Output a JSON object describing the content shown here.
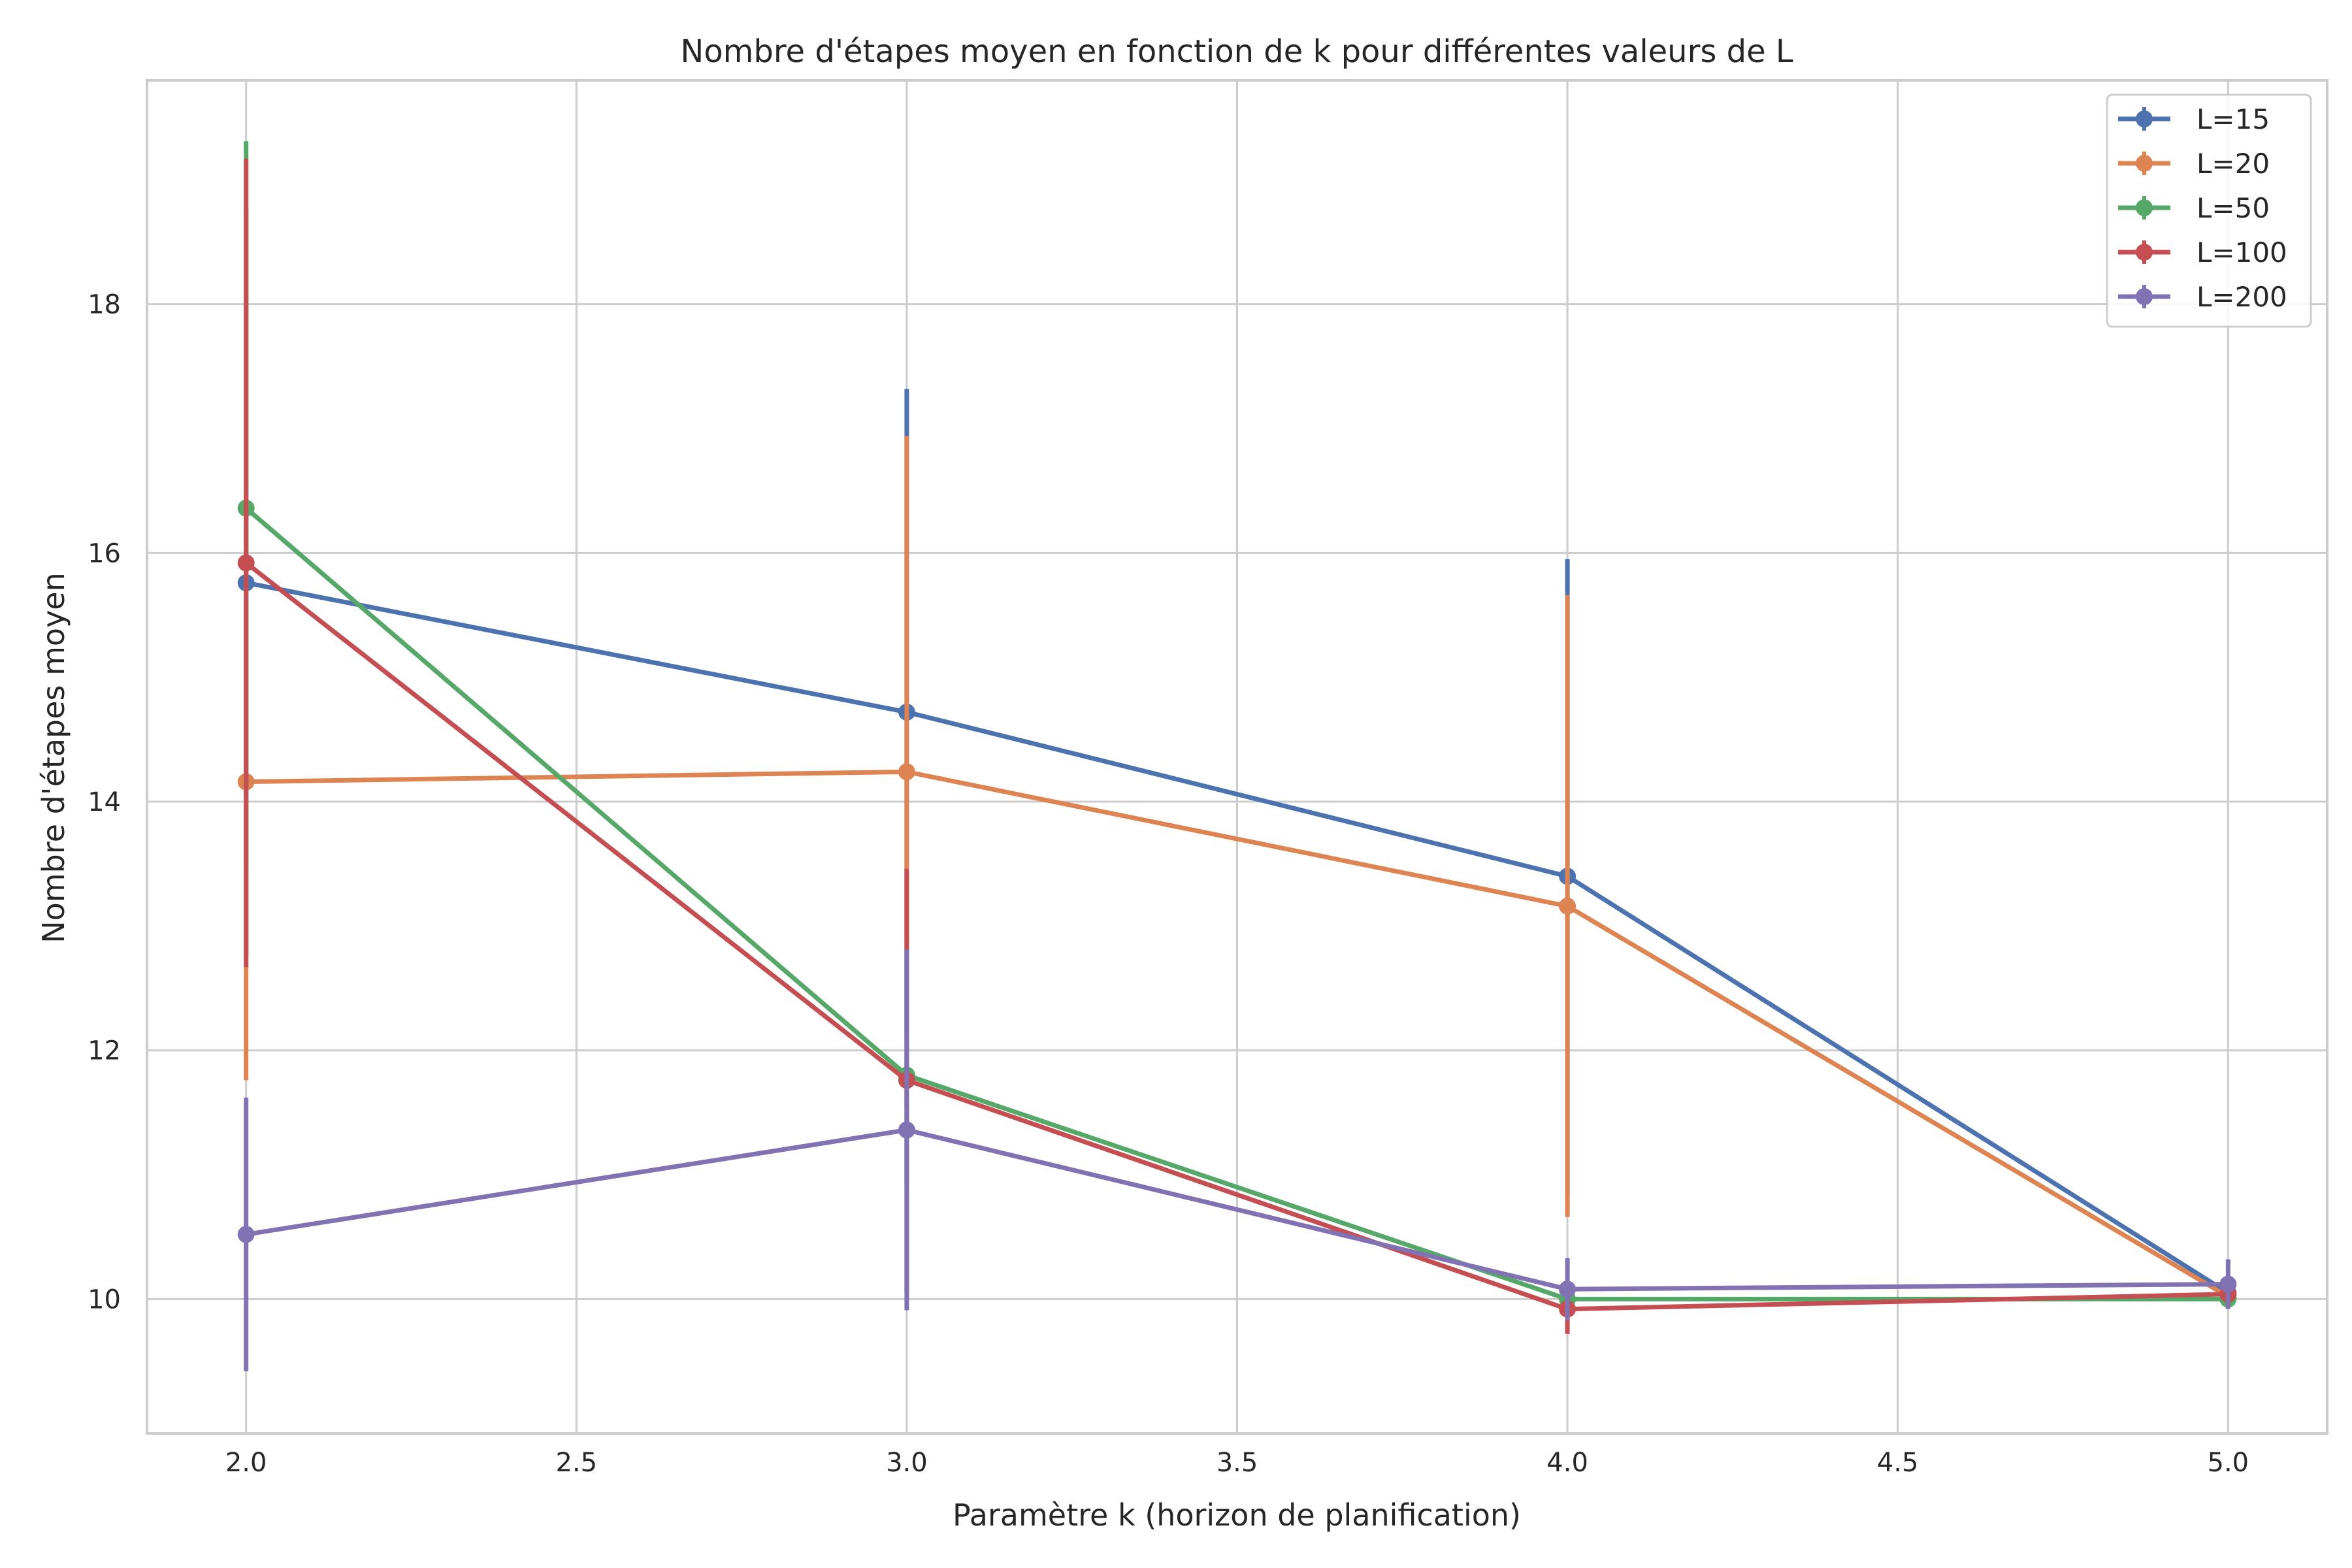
{
  "chart_data": {
    "type": "line",
    "title": "Nombre d'étapes moyen en fonction de k pour différentes valeurs de L",
    "xlabel": "Paramètre k (horizon de planification)",
    "ylabel": "Nombre d'étapes moyen",
    "x": [
      2.0,
      3.0,
      4.0,
      5.0
    ],
    "xlim": [
      1.85,
      5.15
    ],
    "ylim": [
      8.92,
      19.8
    ],
    "xticks": [
      "2.0",
      "2.5",
      "3.0",
      "3.5",
      "4.0",
      "4.5",
      "5.0"
    ],
    "yticks": [
      "10",
      "12",
      "14",
      "16",
      "18"
    ],
    "grid": true,
    "legend_position": "top-right",
    "series": [
      {
        "name": "L=15",
        "color": "#4c72b0",
        "values": [
          15.76,
          14.72,
          13.4,
          10.05
        ],
        "error": [
          3.0,
          2.6,
          2.55,
          0.05
        ]
      },
      {
        "name": "L=20",
        "color": "#dd8452",
        "values": [
          14.16,
          14.24,
          13.16,
          10.02
        ],
        "error": [
          2.4,
          2.7,
          2.5,
          0.05
        ]
      },
      {
        "name": "L=50",
        "color": "#55a868",
        "values": [
          16.36,
          11.8,
          10.0,
          10.0
        ],
        "error": [
          2.95,
          0.9,
          0.05,
          0.05
        ]
      },
      {
        "name": "L=100",
        "color": "#c44e52",
        "values": [
          15.92,
          11.76,
          9.92,
          10.04
        ],
        "error": [
          3.25,
          1.7,
          0.2,
          0.08
        ]
      },
      {
        "name": "L=200",
        "color": "#8172b3",
        "values": [
          10.52,
          11.36,
          10.08,
          10.12
        ],
        "error": [
          1.1,
          1.45,
          0.25,
          0.2
        ]
      }
    ]
  }
}
